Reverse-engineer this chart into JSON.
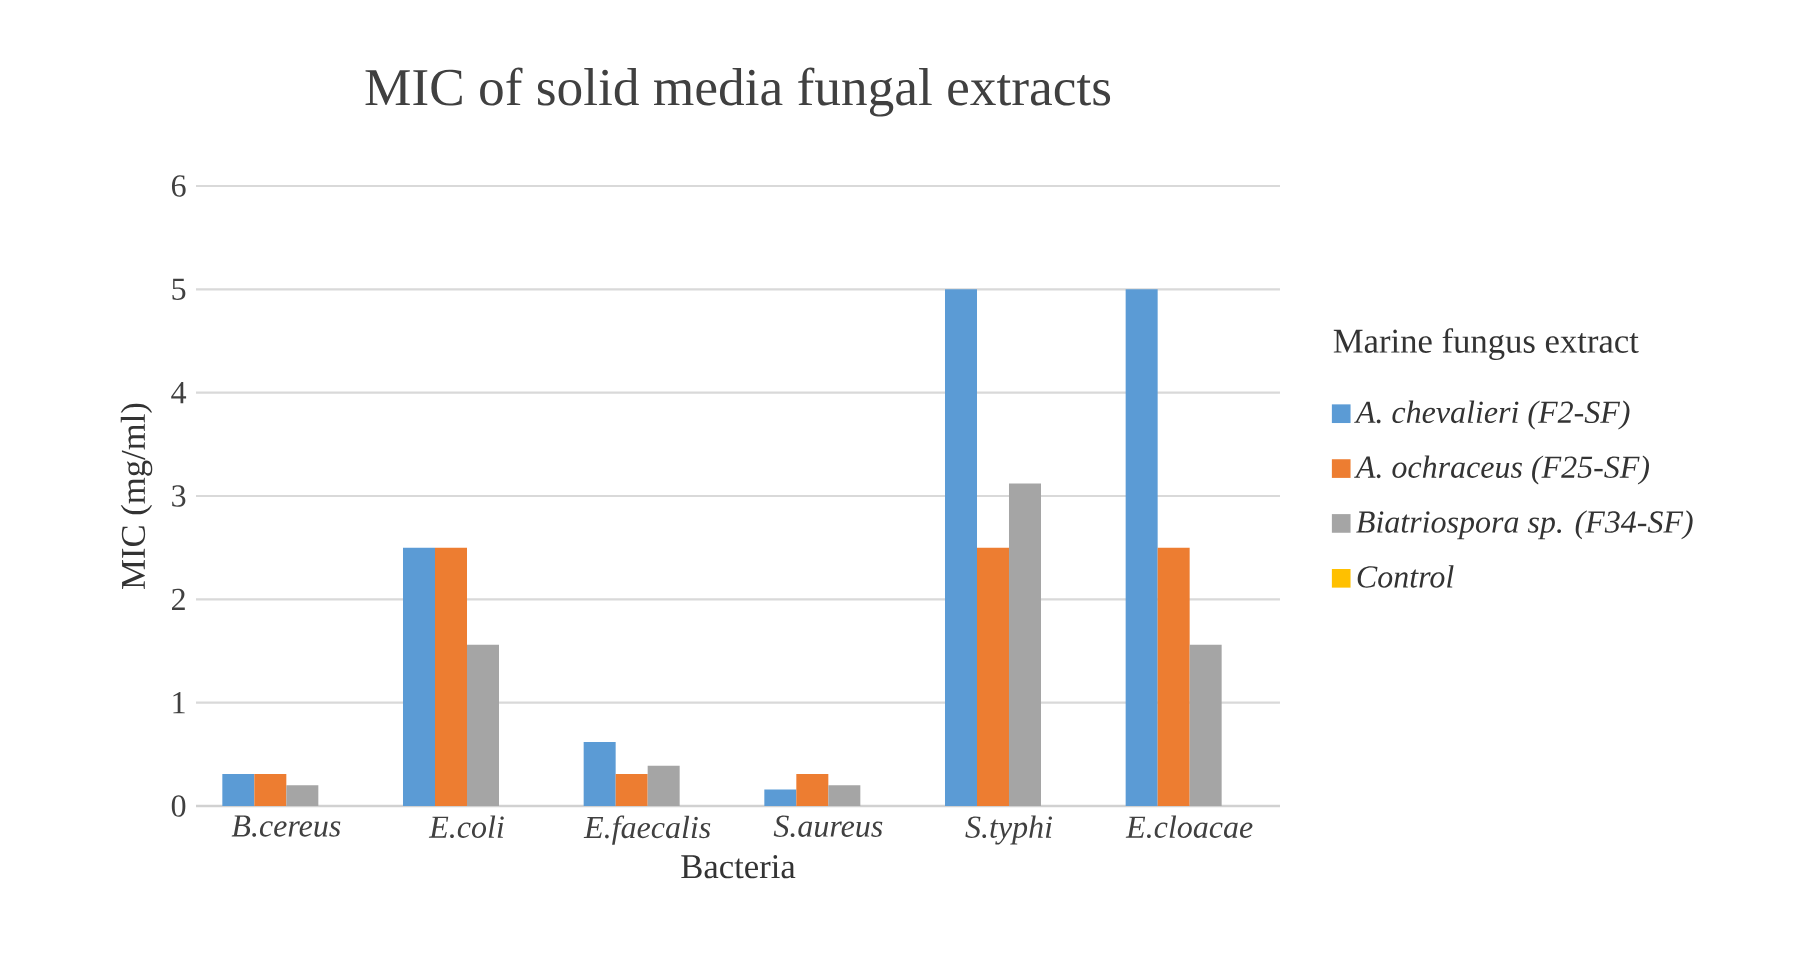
{
  "chart_data": {
    "type": "bar",
    "title": "MIC of solid media fungal extracts",
    "xlabel": "Bacteria",
    "ylabel": "MIC (mg/ml)",
    "legend_title": "Marine fungus extract",
    "categories": [
      "B.cereus",
      "E.coli",
      "E.faecalis",
      "S.aureus",
      "S.typhi",
      "E.cloacae"
    ],
    "series": [
      {
        "name": "A. chevalieri (F2-SF)",
        "color": "#5b9bd5",
        "values": [
          0.31,
          2.5,
          0.62,
          0.16,
          5,
          5
        ]
      },
      {
        "name": "A. ochraceus (F25-SF)",
        "color": "#ed7d31",
        "values": [
          0.31,
          2.5,
          0.31,
          0.31,
          2.5,
          2.5
        ]
      },
      {
        "name": "Biatriospora sp. (F34-SF)",
        "color": "#a5a5a5",
        "values": [
          0.2,
          1.56,
          0.39,
          0.2,
          3.12,
          1.56
        ]
      },
      {
        "name": "Control",
        "color": "#ffc000",
        "values": [
          0,
          0,
          0,
          0,
          0,
          0
        ]
      }
    ],
    "ylim": [
      0,
      6
    ],
    "yticks": [
      0,
      1,
      2,
      3,
      4,
      5,
      6
    ],
    "grid": "y",
    "legend": "right"
  }
}
